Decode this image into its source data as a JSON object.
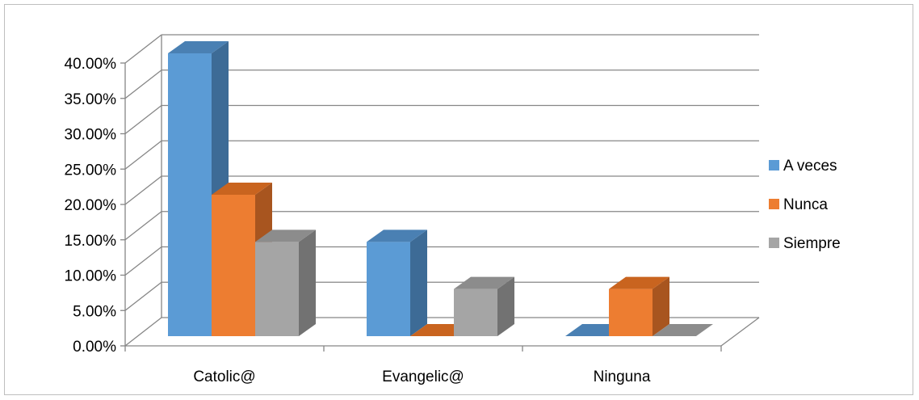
{
  "chart_data": {
    "type": "bar",
    "categories": [
      "Catolic@",
      "Evangelic@",
      "Ninguna"
    ],
    "series": [
      {
        "name": "A veces",
        "values": [
          0.4,
          0.1333,
          0.0
        ],
        "color": "#5b9bd5",
        "side_color": "#3d6b96",
        "top_color": "#4a80b3"
      },
      {
        "name": "Nunca",
        "values": [
          0.2,
          0.0,
          0.0667
        ],
        "color": "#ed7d31",
        "side_color": "#a8551f",
        "top_color": "#c9641f"
      },
      {
        "name": "Siempre",
        "values": [
          0.1333,
          0.0667,
          0.0
        ],
        "color": "#a5a5a5",
        "side_color": "#727272",
        "top_color": "#8c8c8c"
      }
    ],
    "y_ticks": [
      "0.00%",
      "5.00%",
      "10.00%",
      "15.00%",
      "20.00%",
      "25.00%",
      "30.00%",
      "35.00%",
      "40.00%"
    ],
    "ylim": [
      0,
      0.4
    ],
    "grid": true,
    "legend_position": "right"
  }
}
